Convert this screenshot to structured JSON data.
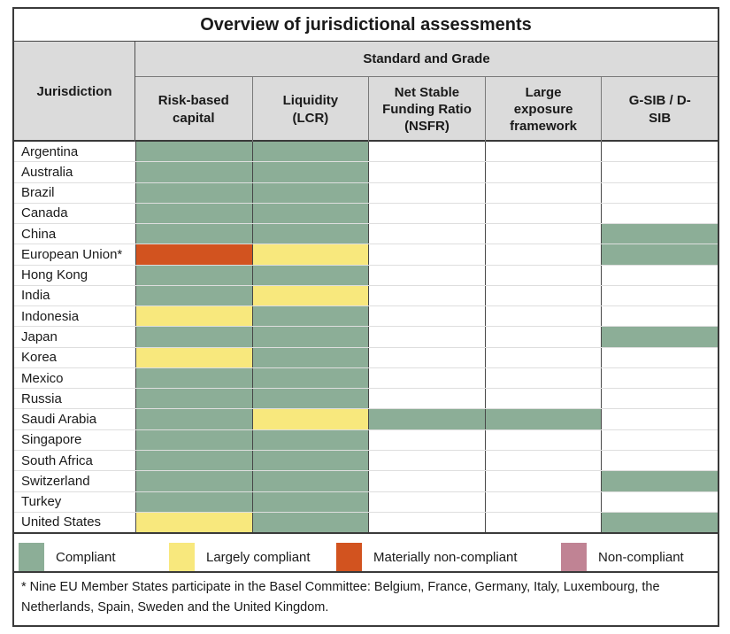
{
  "chart_data": {
    "type": "table",
    "title": "Overview of jurisdictional assessments",
    "row_header": "Jurisdiction",
    "group_header": "Standard and Grade",
    "columns": [
      "Risk-based capital",
      "Liquidity (LCR)",
      "Net Stable Funding Ratio (NSFR)",
      "Large exposure framework",
      "G-SIB / D-SIB"
    ],
    "grade_scale": {
      "C": "Compliant",
      "LC": "Largely compliant",
      "MNC": "Materially non-compliant",
      "NC": "Non-compliant",
      "": "blank (no assessment shown)"
    },
    "rows": [
      {
        "jurisdiction": "Argentina",
        "grades": [
          "C",
          "C",
          "",
          "",
          ""
        ]
      },
      {
        "jurisdiction": "Australia",
        "grades": [
          "C",
          "C",
          "",
          "",
          ""
        ]
      },
      {
        "jurisdiction": "Brazil",
        "grades": [
          "C",
          "C",
          "",
          "",
          ""
        ]
      },
      {
        "jurisdiction": "Canada",
        "grades": [
          "C",
          "C",
          "",
          "",
          ""
        ]
      },
      {
        "jurisdiction": "China",
        "grades": [
          "C",
          "C",
          "",
          "",
          "C"
        ]
      },
      {
        "jurisdiction": "European Union*",
        "grades": [
          "MNC",
          "LC",
          "",
          "",
          "C"
        ]
      },
      {
        "jurisdiction": "Hong Kong",
        "grades": [
          "C",
          "C",
          "",
          "",
          ""
        ]
      },
      {
        "jurisdiction": "India",
        "grades": [
          "C",
          "LC",
          "",
          "",
          ""
        ]
      },
      {
        "jurisdiction": "Indonesia",
        "grades": [
          "LC",
          "C",
          "",
          "",
          ""
        ]
      },
      {
        "jurisdiction": "Japan",
        "grades": [
          "C",
          "C",
          "",
          "",
          "C"
        ]
      },
      {
        "jurisdiction": "Korea",
        "grades": [
          "LC",
          "C",
          "",
          "",
          ""
        ]
      },
      {
        "jurisdiction": "Mexico",
        "grades": [
          "C",
          "C",
          "",
          "",
          ""
        ]
      },
      {
        "jurisdiction": "Russia",
        "grades": [
          "C",
          "C",
          "",
          "",
          ""
        ]
      },
      {
        "jurisdiction": "Saudi Arabia",
        "grades": [
          "C",
          "LC",
          "C",
          "C",
          ""
        ]
      },
      {
        "jurisdiction": "Singapore",
        "grades": [
          "C",
          "C",
          "",
          "",
          ""
        ]
      },
      {
        "jurisdiction": "South Africa",
        "grades": [
          "C",
          "C",
          "",
          "",
          ""
        ]
      },
      {
        "jurisdiction": "Switzerland",
        "grades": [
          "C",
          "C",
          "",
          "",
          "C"
        ]
      },
      {
        "jurisdiction": "Turkey",
        "grades": [
          "C",
          "C",
          "",
          "",
          ""
        ]
      },
      {
        "jurisdiction": "United States",
        "grades": [
          "LC",
          "C",
          "",
          "",
          "C"
        ]
      }
    ],
    "legend": [
      {
        "grade": "C",
        "label": "Compliant"
      },
      {
        "grade": "LC",
        "label": "Largely compliant"
      },
      {
        "grade": "MNC",
        "label": "Materially non-compliant"
      },
      {
        "grade": "NC",
        "label": "Non-compliant"
      }
    ],
    "legend_position": "bottom",
    "footnote": "* Nine EU Member States participate in the Basel Committee: Belgium, France, Germany, Italy, Luxembourg, the Netherlands, Spain, Sweden and the United Kingdom."
  },
  "colors": {
    "compliant": "#8CAE97",
    "largely_compliant": "#F8E87D",
    "materially_non_compliant": "#D2531F",
    "non_compliant": "#C08394",
    "header_background": "#DBDBDB",
    "border_dark": "#3A3A3A"
  }
}
